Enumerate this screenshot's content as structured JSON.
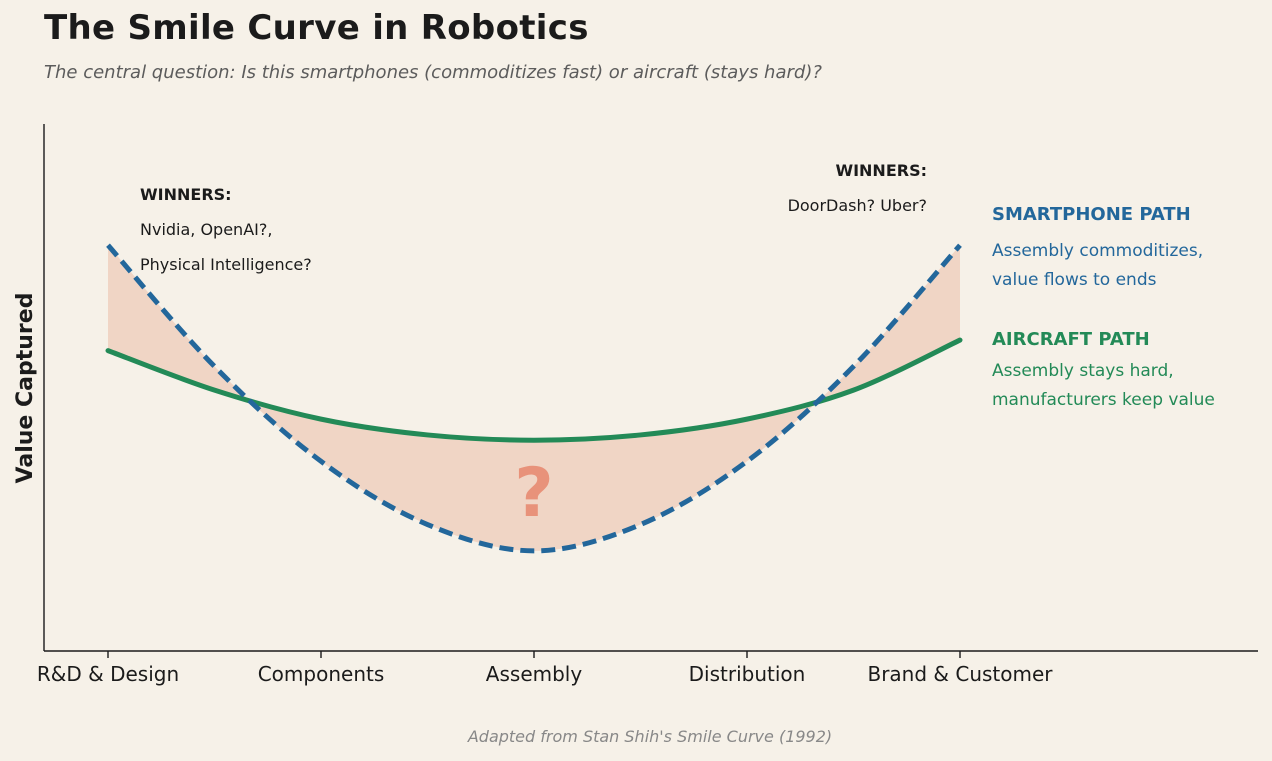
{
  "title": "The Smile Curve in Robotics",
  "subtitle": "The central question: Is this smartphones (commoditizes fast) or aircraft (stays hard)?",
  "source_note": "Adapted from Stan Shih's Smile Curve (1992)",
  "chart_data": {
    "type": "line",
    "ylabel": "Value Captured",
    "xlabel": "",
    "categories": [
      "R&D & Design",
      "Components",
      "Assembly",
      "Distribution",
      "Brand & Customer"
    ],
    "x_range": [
      -0.3,
      5.4
    ],
    "ylim": [
      0,
      10
    ],
    "grid": false,
    "series": [
      {
        "name": "SMARTPHONE PATH",
        "style": "dashed",
        "color": "#23679b",
        "x": [
          0,
          0.5,
          1,
          1.5,
          2,
          2.5,
          3,
          3.5,
          4
        ],
        "y": [
          7.7,
          5.4,
          3.6,
          2.4,
          1.9,
          2.4,
          3.6,
          5.4,
          7.7
        ]
      },
      {
        "name": "AIRCRAFT PATH",
        "style": "solid",
        "color": "#238a57",
        "x": [
          0,
          0.5,
          1,
          1.5,
          2,
          2.5,
          3,
          3.5,
          4
        ],
        "y": [
          5.7,
          4.95,
          4.4,
          4.1,
          4.0,
          4.1,
          4.4,
          4.95,
          5.9
        ]
      }
    ],
    "shaded_gap_color": "#f0d5c5",
    "center_mark": "?",
    "center_mark_color": "#e8927a",
    "annotations": {
      "left_winners": {
        "heading": "WINNERS:",
        "lines": [
          "Nvidia, OpenAI?,",
          "Physical Intelligence?"
        ]
      },
      "right_winners": {
        "heading": "WINNERS:",
        "lines": [
          "DoorDash? Uber?"
        ]
      },
      "smartphone": {
        "heading": "SMARTPHONE PATH",
        "lines": [
          "Assembly commoditizes,",
          "value flows to ends"
        ],
        "color": "#23679b"
      },
      "aircraft": {
        "heading": "AIRCRAFT PATH",
        "lines": [
          "Assembly stays hard,",
          "manufacturers keep value"
        ],
        "color": "#238a57"
      }
    }
  }
}
